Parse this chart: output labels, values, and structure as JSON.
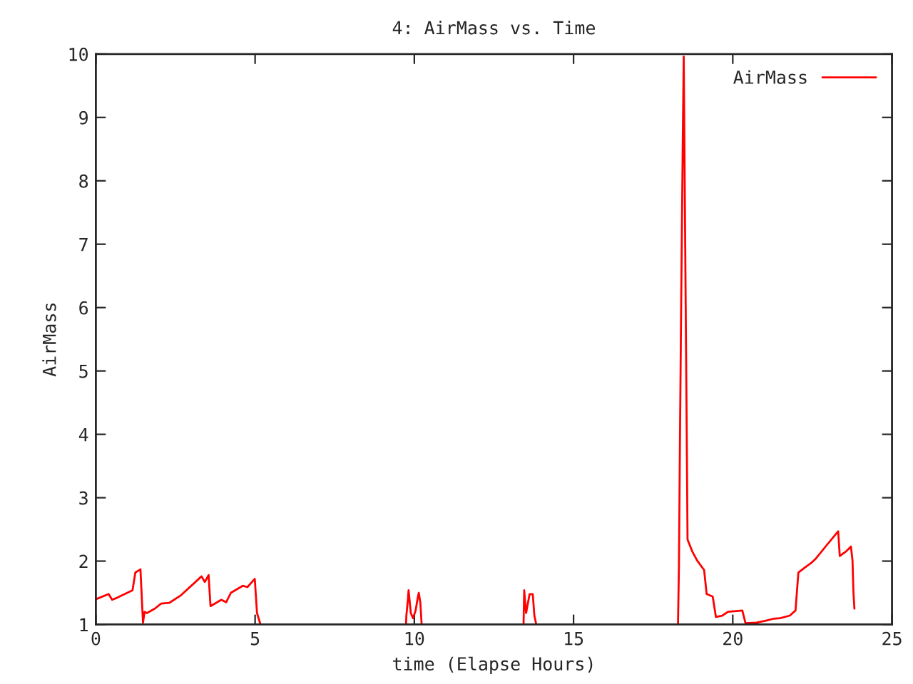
{
  "chart_data": {
    "type": "line",
    "title": "4: AirMass vs. Time",
    "xlabel": "time (Elapse Hours)",
    "ylabel": "AirMass",
    "xlim": [
      0,
      25
    ],
    "xticks": [
      0,
      5,
      10,
      15,
      20,
      25
    ],
    "ylim": [
      1,
      10
    ],
    "yticks": [
      1,
      2,
      3,
      4,
      5,
      6,
      7,
      8,
      9,
      10
    ],
    "grid": false,
    "legend": "top right",
    "marker": "none",
    "line_style": "solid",
    "series": [
      {
        "name": "AirMass",
        "color": "#ff0000",
        "x": [
          0.01,
          0.4,
          0.51,
          0.66,
          1.15,
          1.24,
          1.4,
          1.48,
          1.53,
          1.6,
          1.85,
          2.05,
          2.3,
          2.67,
          3.32,
          3.42,
          3.54,
          3.6,
          3.94,
          4.09,
          4.24,
          4.61,
          4.76,
          4.99,
          5.06,
          5.17,
          7.5,
          9.74,
          9.75,
          9.8,
          9.82,
          9.89,
          9.96,
          10.04,
          10.1,
          10.14,
          10.19,
          10.23,
          12.0,
          13.43,
          13.44,
          13.45,
          13.51,
          13.62,
          13.72,
          13.77,
          13.83,
          16.0,
          18.28,
          18.31,
          18.34,
          18.38,
          18.43,
          18.46,
          18.49,
          18.55,
          18.58,
          18.73,
          18.88,
          19.1,
          19.18,
          19.37,
          19.47,
          19.67,
          19.85,
          20.3,
          20.4,
          20.74,
          21.04,
          21.27,
          21.49,
          21.79,
          21.97,
          22.06,
          22.24,
          22.46,
          22.61,
          22.98,
          23.31,
          23.36,
          23.55,
          23.71,
          23.76,
          23.79,
          23.82
        ],
        "values": [
          1.4,
          1.48,
          1.39,
          1.42,
          1.54,
          1.82,
          1.87,
          1.03,
          1.2,
          1.18,
          1.25,
          1.33,
          1.34,
          1.46,
          1.76,
          1.67,
          1.78,
          1.29,
          1.39,
          1.35,
          1.5,
          1.61,
          1.59,
          1.72,
          1.18,
          1.0,
          null,
          1.0,
          1.14,
          1.4,
          1.54,
          1.18,
          1.1,
          1.22,
          1.4,
          1.5,
          1.34,
          1.0,
          null,
          1.0,
          1.27,
          1.54,
          1.18,
          1.48,
          1.48,
          1.14,
          1.0,
          null,
          1.0,
          1.93,
          3.81,
          6.06,
          8.64,
          9.96,
          8.04,
          4.26,
          2.34,
          2.15,
          2.01,
          1.86,
          1.48,
          1.44,
          1.12,
          1.14,
          1.2,
          1.22,
          1.02,
          1.03,
          1.06,
          1.09,
          1.1,
          1.14,
          1.22,
          1.82,
          1.89,
          1.97,
          2.04,
          2.27,
          2.47,
          2.08,
          2.15,
          2.23,
          2.01,
          1.5,
          1.25
        ]
      }
    ]
  }
}
